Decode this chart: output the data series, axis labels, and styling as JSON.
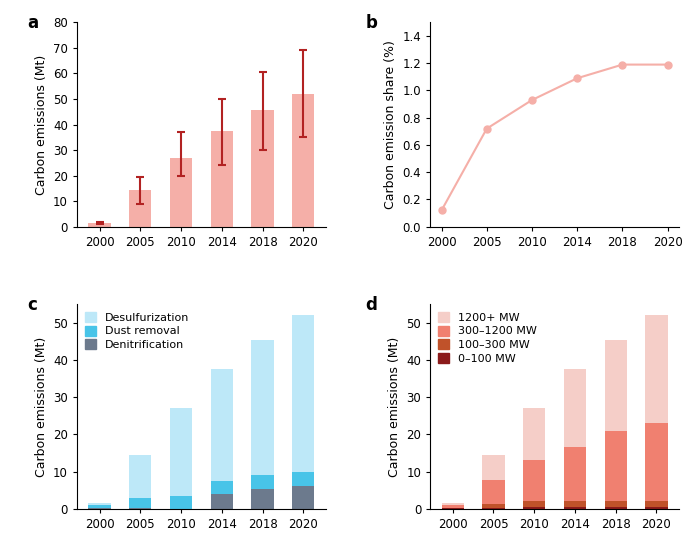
{
  "years": [
    2000,
    2005,
    2010,
    2014,
    2018,
    2020
  ],
  "panel_a": {
    "values": [
      1.5,
      14.5,
      27.0,
      37.5,
      45.5,
      52.0
    ],
    "yerr_lower": [
      0.5,
      5.5,
      7.0,
      13.5,
      15.5,
      17.0
    ],
    "yerr_upper": [
      0.5,
      5.0,
      10.0,
      12.5,
      15.0,
      17.0
    ],
    "bar_color": "#F5AFA8",
    "err_color": "#B22222",
    "ylabel": "Carbon emissions (Mt)",
    "ylim": [
      0,
      80
    ],
    "yticks": [
      0,
      10,
      20,
      30,
      40,
      50,
      60,
      70,
      80
    ]
  },
  "panel_b": {
    "values": [
      0.12,
      0.72,
      0.93,
      1.09,
      1.19,
      1.19
    ],
    "color": "#F5AFA8",
    "ylabel": "Carbon emission share (%)",
    "ylim": [
      0.0,
      1.5
    ],
    "yticks": [
      0.0,
      0.2,
      0.4,
      0.6,
      0.8,
      1.0,
      1.2,
      1.4
    ]
  },
  "panel_c": {
    "denitrification": [
      0.1,
      0.3,
      0.0,
      4.0,
      5.2,
      6.0
    ],
    "dust_removal": [
      0.9,
      2.7,
      3.5,
      3.5,
      3.8,
      4.0
    ],
    "desulfurization": [
      0.5,
      11.5,
      23.5,
      30.0,
      36.5,
      42.0
    ],
    "colors": [
      "#6c7a8d",
      "#48C4E8",
      "#BDE8F8"
    ],
    "ylabel": "Carbon emissions (Mt)",
    "ylim": [
      0,
      55
    ],
    "yticks": [
      0,
      10,
      20,
      30,
      40,
      50
    ],
    "labels": [
      "Desulfurization",
      "Dust removal",
      "Denitrification"
    ]
  },
  "panel_d": {
    "mw0_100": [
      0.1,
      0.3,
      0.5,
      0.5,
      0.5,
      0.5
    ],
    "mw100_300": [
      0.2,
      0.9,
      1.5,
      1.5,
      1.5,
      1.5
    ],
    "mw300_1200": [
      0.7,
      6.5,
      11.0,
      14.5,
      19.0,
      21.0
    ],
    "mw1200plus": [
      0.5,
      6.8,
      14.0,
      21.0,
      24.5,
      29.0
    ],
    "colors": [
      "#8B1A1A",
      "#C0522A",
      "#F08070",
      "#F5CEC8"
    ],
    "ylabel": "Carbon emissions (Mt)",
    "ylim": [
      0,
      55
    ],
    "yticks": [
      0,
      10,
      20,
      30,
      40,
      50
    ],
    "labels": [
      "1200+ MW",
      "300–1200 MW",
      "100–300 MW",
      "0–100 MW"
    ]
  },
  "label_fontsize": 9,
  "tick_fontsize": 8.5,
  "panel_label_fontsize": 12,
  "legend_fontsize": 8
}
